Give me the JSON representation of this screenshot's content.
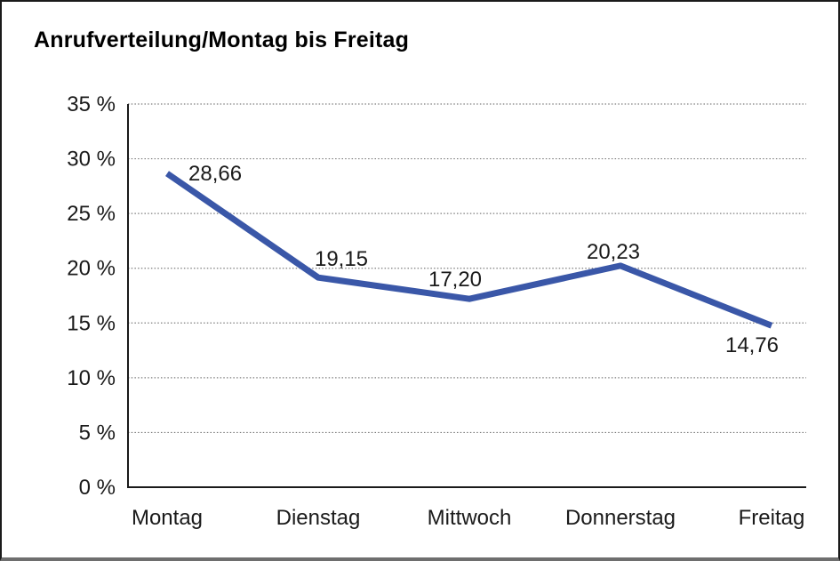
{
  "title": "Anrufverteilung/Montag bis Freitag",
  "chart_data": {
    "type": "line",
    "title": "Anrufverteilung/Montag bis Freitag",
    "categories": [
      "Montag",
      "Dienstag",
      "Mittwoch",
      "Donnerstag",
      "Freitag"
    ],
    "values": [
      28.66,
      19.15,
      17.2,
      20.23,
      14.76
    ],
    "value_labels": [
      "28,66",
      "19,15",
      "17,20",
      "20,23",
      "14,76"
    ],
    "series_name": "Anrufverteilung",
    "xlabel": "",
    "ylabel": "",
    "ylim": [
      0,
      35
    ],
    "y_tick_values": [
      0,
      5,
      10,
      15,
      20,
      25,
      30,
      35
    ],
    "y_tick_labels": [
      "0 %",
      "5 %",
      "10 %",
      "15 %",
      "20 %",
      "25 %",
      "30 %",
      "35 %"
    ],
    "grid": "horizontal-dotted",
    "legend": "none",
    "decimal_separator": ","
  },
  "colors": {
    "line": "#3A57A8",
    "text": "#1a1a1a",
    "axis": "#1a1a1a",
    "grid": "#7d7d7d",
    "background": "#ffffff",
    "frame_border": "#1a1a1a",
    "frame_bottom": "#6e6e6e"
  }
}
